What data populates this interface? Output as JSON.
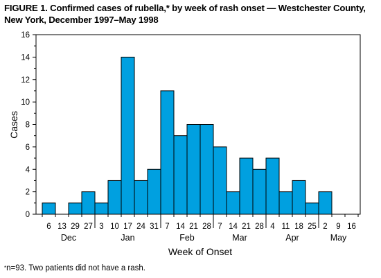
{
  "title_lines": [
    "FIGURE 1. Confirmed cases of rubella,* by week of rash onset — Westchester County,",
    "New York, December 1997–May 1998"
  ],
  "footnote": {
    "marker": "*",
    "text": "n=93. Two patients did not have a rash."
  },
  "chart_data": {
    "type": "bar",
    "title": "FIGURE 1. Confirmed cases of rubella,* by week of rash onset — Westchester County, New York, December 1997–May 1998",
    "xlabel": "Week of Onset",
    "ylabel": "Cases",
    "ylim": [
      0,
      16
    ],
    "yticks": [
      0,
      2,
      4,
      6,
      8,
      10,
      12,
      14,
      16
    ],
    "grid": false,
    "bar_color": "#00a0e0",
    "categories": [
      "6",
      "13",
      "29",
      "27",
      "3",
      "10",
      "17",
      "24",
      "31",
      "7",
      "14",
      "21",
      "28",
      "7",
      "14",
      "21",
      "28",
      "4",
      "11",
      "18",
      "25",
      "2",
      "9",
      "16"
    ],
    "values": [
      1,
      0,
      1,
      2,
      1,
      3,
      14,
      3,
      4,
      11,
      7,
      8,
      8,
      6,
      2,
      5,
      4,
      5,
      2,
      3,
      1,
      2,
      0,
      0
    ],
    "months": [
      {
        "label": "Dec",
        "start": 0,
        "end": 4
      },
      {
        "label": "Jan",
        "start": 4,
        "end": 9
      },
      {
        "label": "Feb",
        "start": 9,
        "end": 13
      },
      {
        "label": "Mar",
        "start": 13,
        "end": 17
      },
      {
        "label": "Apr",
        "start": 17,
        "end": 21
      },
      {
        "label": "May",
        "start": 21,
        "end": 24
      }
    ]
  }
}
